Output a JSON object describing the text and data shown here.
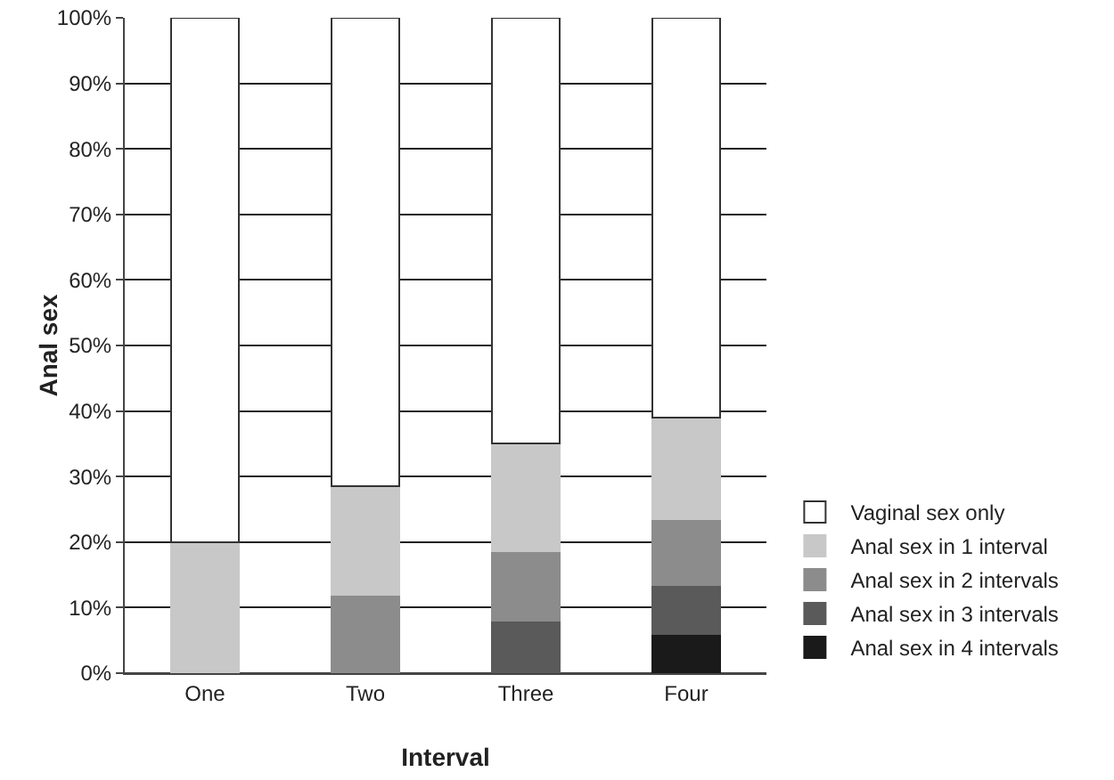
{
  "chart_data": {
    "type": "bar",
    "stacked": true,
    "xlabel": "Interval",
    "ylabel": "Anal sex",
    "categories": [
      "One",
      "Two",
      "Three",
      "Four"
    ],
    "series": [
      {
        "name": "Anal sex in 4 intervals",
        "color": "#1a1a1a",
        "values": [
          0,
          0,
          0,
          6
        ]
      },
      {
        "name": "Anal sex in 3 intervals",
        "color": "#5a5a5a",
        "values": [
          0,
          0,
          8,
          7.4
        ]
      },
      {
        "name": "Anal sex in 2 intervals",
        "color": "#8c8c8c",
        "values": [
          0,
          12,
          10.6,
          10.1
        ]
      },
      {
        "name": "Anal sex in 1 interval",
        "color": "#c8c8c8",
        "values": [
          20,
          16.5,
          16.4,
          15.5
        ]
      },
      {
        "name": "Vaginal sex only",
        "color": "#ffffff",
        "values": [
          80,
          71.5,
          65,
          61
        ]
      }
    ],
    "ylim": [
      0,
      100
    ],
    "yticks": [
      {
        "value": 0,
        "label": "0%"
      },
      {
        "value": 10,
        "label": "10%"
      },
      {
        "value": 20,
        "label": "20%"
      },
      {
        "value": 30,
        "label": "30%"
      },
      {
        "value": 40,
        "label": "40%"
      },
      {
        "value": 50,
        "label": "50%"
      },
      {
        "value": 60,
        "label": "60%"
      },
      {
        "value": 70,
        "label": "70%"
      },
      {
        "value": 80,
        "label": "80%"
      },
      {
        "value": 90,
        "label": "90%"
      },
      {
        "value": 100,
        "label": "100%"
      }
    ],
    "grid": "y",
    "legend": "bottom right"
  }
}
